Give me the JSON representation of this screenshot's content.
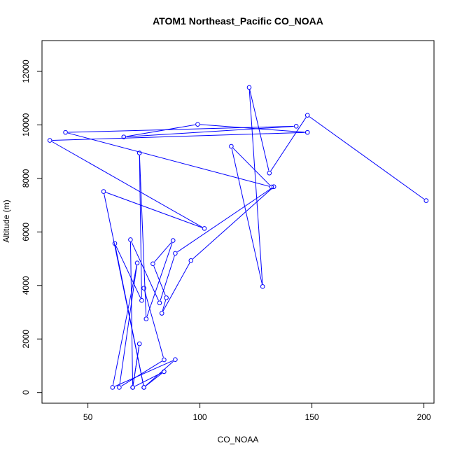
{
  "chart_data": {
    "type": "line",
    "title": "ATOM1 Northeast_Pacific CO_NOAA",
    "xlabel": "CO_NOAA",
    "ylabel": "Altitude (m)",
    "xlim": [
      29.5,
      204.5
    ],
    "ylim": [
      -400,
      13150
    ],
    "xticks": [
      50,
      100,
      150,
      200
    ],
    "yticks": [
      0,
      2000,
      4000,
      6000,
      8000,
      10000,
      12000
    ],
    "color": "#0000ff",
    "marker": "open-circle",
    "series": [
      {
        "x": [
          201,
          148,
          131,
          122,
          128,
          114,
          132,
          40,
          143,
          66,
          99,
          148,
          33,
          102,
          57,
          75,
          62,
          74,
          73,
          76,
          88,
          79,
          85,
          83,
          96,
          133,
          89,
          82,
          69,
          70,
          73,
          70,
          84,
          75,
          89,
          61,
          72,
          64,
          84,
          75
        ],
        "y": [
          7170,
          10360,
          8200,
          11400,
          3960,
          9200,
          7680,
          9720,
          9950,
          9550,
          10020,
          9720,
          9420,
          6130,
          7510,
          190,
          5570,
          3440,
          8950,
          2750,
          5680,
          4810,
          3540,
          2960,
          4930,
          7690,
          5200,
          3350,
          5710,
          190,
          1820,
          190,
          780,
          190,
          1230,
          190,
          4840,
          190,
          1220,
          3900
        ]
      }
    ]
  }
}
